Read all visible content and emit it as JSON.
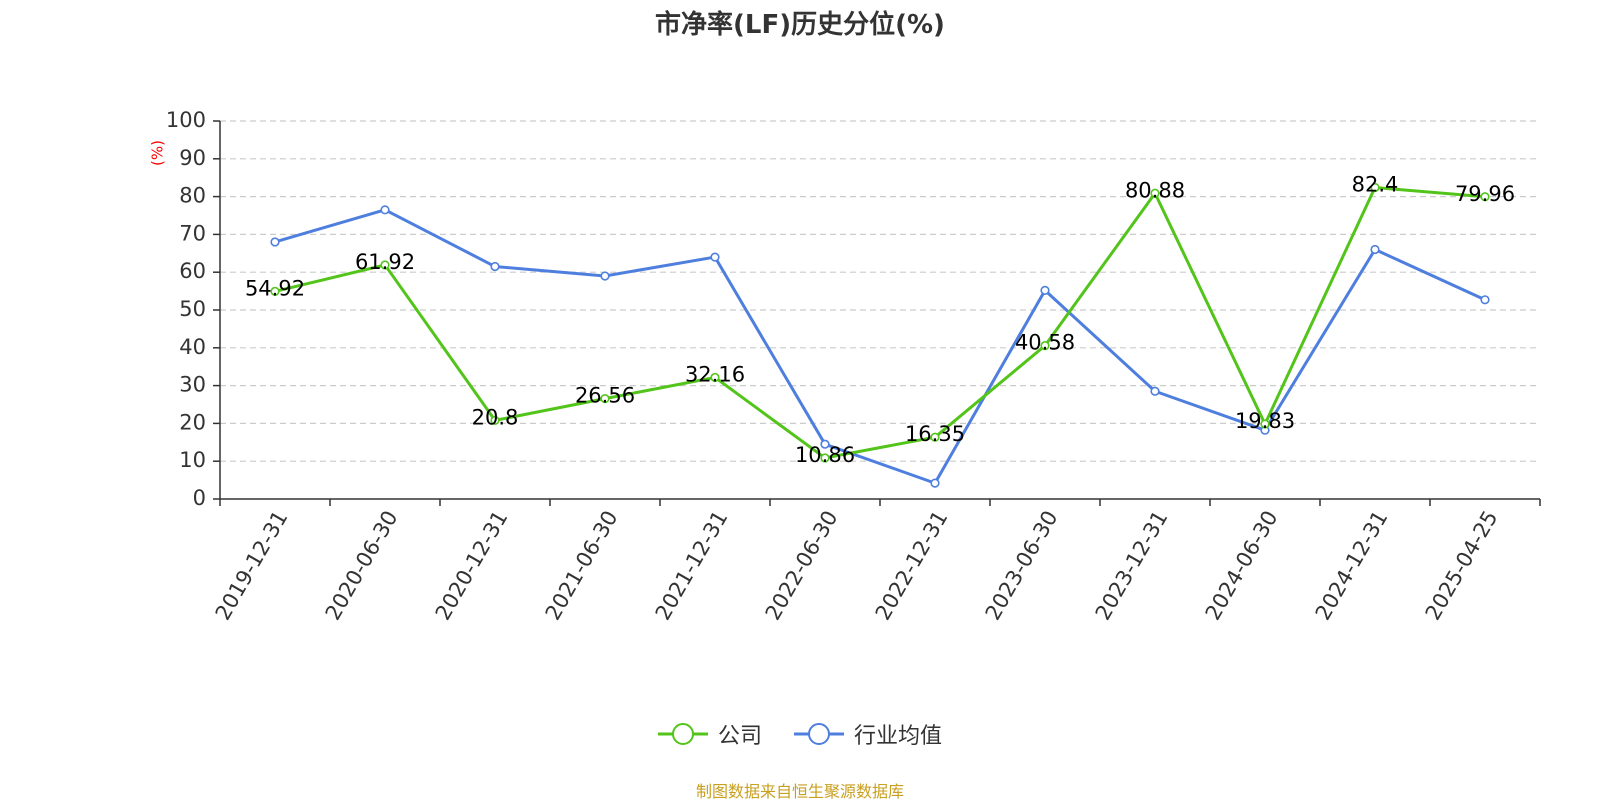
{
  "chart_data": {
    "type": "line",
    "title": "市净率(LF)历史分位(%)",
    "ylabel": "(%)",
    "xlabel": "",
    "ylim": [
      0,
      100
    ],
    "yticks": [
      0,
      10,
      20,
      30,
      40,
      50,
      60,
      70,
      80,
      90,
      100
    ],
    "grid": true,
    "legend_position": "bottom",
    "categories": [
      "2019-12-31",
      "2020-06-30",
      "2020-12-31",
      "2021-06-30",
      "2021-12-31",
      "2022-06-30",
      "2022-12-31",
      "2023-06-30",
      "2023-12-31",
      "2024-06-30",
      "2024-12-31",
      "2025-04-25"
    ],
    "series": [
      {
        "name": "公司",
        "color": "#52c41a",
        "values": [
          54.92,
          61.92,
          20.8,
          26.56,
          32.16,
          10.86,
          16.35,
          40.58,
          80.88,
          19.83,
          82.4,
          79.96
        ],
        "labels": [
          "54.92",
          "61.92",
          "20.8",
          "26.56",
          "32.16",
          "10.86",
          "16.35",
          "40.58",
          "80.88",
          "19.83",
          "82.4",
          "79.96"
        ]
      },
      {
        "name": "行业均值",
        "color": "#4e7fde",
        "values": [
          68,
          76.5,
          61.5,
          59,
          64,
          14.5,
          4.2,
          55.2,
          28.5,
          18.2,
          66,
          52.7
        ]
      }
    ]
  },
  "source_note": "制图数据来自恒生聚源数据库",
  "colors": {
    "axis": "#333333",
    "grid": "#cccccc",
    "ylabel": "#ff0000",
    "source": "#c8a020"
  }
}
